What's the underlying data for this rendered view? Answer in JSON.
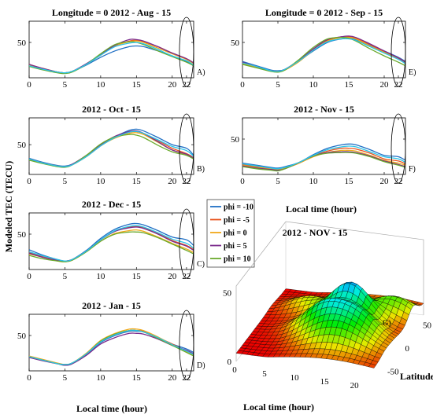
{
  "y_axis_label": "Modeled TEC (TECU)",
  "x_axis_label_left": "Local time (hour)",
  "x_axis_label_right": "Local time (hour)",
  "legend": [
    {
      "label": "phi = -10",
      "color": "#1f6fc4"
    },
    {
      "label": "phi = -5",
      "color": "#e8541e"
    },
    {
      "label": "phi = 0",
      "color": "#f0a818"
    },
    {
      "label": "phi = 5",
      "color": "#7a2a8c"
    },
    {
      "label": "phi = 10",
      "color": "#6aaa2c"
    }
  ],
  "colors": {
    "phi_m10": "#1f6fc4",
    "phi_m5": "#e8541e",
    "phi_0": "#f0a818",
    "phi_5": "#7a2a8c",
    "phi_10": "#6aaa2c",
    "cyan": "#29c3e8"
  },
  "chart_data": [
    {
      "id": "A",
      "type": "line",
      "panel_label": "A)",
      "title": "Longitude = 0  2012 - Aug - 15",
      "xlim": [
        0,
        23
      ],
      "ylim": [
        0,
        80
      ],
      "xticks": [
        0,
        5,
        10,
        15,
        20,
        22
      ],
      "yticks": [
        50
      ],
      "x": [
        0,
        2,
        4,
        5,
        6,
        8,
        10,
        12,
        14,
        15,
        16,
        18,
        20,
        22,
        23
      ],
      "series": [
        {
          "color": "#1f6fc4",
          "values": [
            17,
            12,
            8,
            7,
            9,
            18,
            29,
            38,
            44,
            45,
            44,
            38,
            31,
            23,
            17
          ]
        },
        {
          "color": "#e8541e",
          "values": [
            19,
            13,
            8,
            7,
            9,
            19,
            32,
            45,
            52,
            53,
            51,
            44,
            35,
            27,
            21
          ]
        },
        {
          "color": "#f0a818",
          "values": [
            18,
            13,
            8,
            7,
            9,
            19,
            32,
            45,
            51,
            52,
            50,
            42,
            34,
            26,
            20
          ]
        },
        {
          "color": "#7a2a8c",
          "values": [
            19,
            13,
            8,
            7,
            9,
            20,
            33,
            46,
            54,
            54,
            52,
            44,
            35,
            27,
            21
          ]
        },
        {
          "color": "#6aaa2c",
          "values": [
            16,
            11,
            7,
            6,
            8,
            19,
            34,
            47,
            51,
            50,
            47,
            38,
            30,
            22,
            17
          ]
        },
        {
          "color": "#29c3e8",
          "values": [
            17,
            12,
            8,
            7,
            9,
            19,
            32,
            44,
            49,
            50,
            48,
            40,
            31,
            24,
            18
          ]
        }
      ]
    },
    {
      "id": "E",
      "type": "line",
      "panel_label": "E)",
      "title": "Longitude = 0  2012 - Sep - 15",
      "xlim": [
        0,
        23
      ],
      "ylim": [
        0,
        80
      ],
      "xticks": [
        0,
        5,
        10,
        15,
        20,
        22
      ],
      "yticks": [
        50
      ],
      "x": [
        0,
        2,
        4,
        5,
        6,
        8,
        10,
        12,
        14,
        15,
        16,
        18,
        20,
        22,
        23
      ],
      "series": [
        {
          "color": "#1f6fc4",
          "values": [
            23,
            17,
            11,
            10,
            12,
            24,
            38,
            50,
            55,
            56,
            54,
            46,
            38,
            29,
            23
          ]
        },
        {
          "color": "#e8541e",
          "values": [
            21,
            15,
            10,
            9,
            12,
            24,
            40,
            53,
            58,
            58,
            56,
            47,
            37,
            28,
            22
          ]
        },
        {
          "color": "#f0a818",
          "values": [
            20,
            15,
            10,
            9,
            11,
            23,
            39,
            52,
            57,
            57,
            55,
            45,
            36,
            27,
            21
          ]
        },
        {
          "color": "#7a2a8c",
          "values": [
            22,
            16,
            10,
            9,
            12,
            25,
            41,
            54,
            58,
            59,
            57,
            48,
            38,
            28,
            22
          ]
        },
        {
          "color": "#6aaa2c",
          "values": [
            19,
            14,
            9,
            8,
            11,
            26,
            43,
            55,
            57,
            56,
            52,
            41,
            31,
            22,
            17
          ]
        },
        {
          "color": "#29c3e8",
          "values": [
            21,
            16,
            10,
            9,
            12,
            24,
            39,
            51,
            55,
            55,
            53,
            44,
            35,
            26,
            20
          ]
        }
      ]
    },
    {
      "id": "B",
      "type": "line",
      "panel_label": "B)",
      "title": "2012 - Oct - 15",
      "xlim": [
        0,
        23
      ],
      "ylim": [
        0,
        95
      ],
      "xticks": [
        0,
        5,
        10,
        15,
        20,
        22
      ],
      "yticks": [
        50
      ],
      "x": [
        0,
        2,
        4,
        5,
        6,
        8,
        10,
        12,
        14,
        15,
        16,
        18,
        20,
        22,
        23
      ],
      "series": [
        {
          "color": "#1f6fc4",
          "values": [
            27,
            20,
            15,
            14,
            17,
            30,
            48,
            63,
            74,
            76,
            73,
            62,
            50,
            44,
            32
          ]
        },
        {
          "color": "#e8541e",
          "values": [
            26,
            19,
            14,
            13,
            16,
            30,
            48,
            62,
            71,
            72,
            69,
            57,
            44,
            35,
            28
          ]
        },
        {
          "color": "#f0a818",
          "values": [
            25,
            19,
            14,
            13,
            16,
            30,
            48,
            61,
            69,
            70,
            67,
            54,
            41,
            33,
            26
          ]
        },
        {
          "color": "#7a2a8c",
          "values": [
            26,
            19,
            14,
            13,
            17,
            32,
            50,
            64,
            72,
            73,
            69,
            55,
            41,
            34,
            27
          ]
        },
        {
          "color": "#6aaa2c",
          "values": [
            24,
            18,
            13,
            12,
            16,
            32,
            51,
            63,
            67,
            66,
            62,
            49,
            38,
            32,
            26
          ]
        },
        {
          "color": "#29c3e8",
          "values": [
            26,
            19,
            14,
            13,
            16,
            30,
            48,
            62,
            71,
            72,
            69,
            58,
            47,
            40,
            30
          ]
        }
      ]
    },
    {
      "id": "F",
      "type": "line",
      "panel_label": "F)",
      "title": "2012 - Nov - 15",
      "xlim": [
        0,
        23
      ],
      "ylim": [
        0,
        80
      ],
      "xticks": [
        0,
        5,
        10,
        15,
        20,
        22
      ],
      "yticks": [
        50
      ],
      "x": [
        0,
        2,
        4,
        5,
        6,
        8,
        10,
        12,
        14,
        15,
        16,
        18,
        20,
        22,
        23
      ],
      "series": [
        {
          "color": "#1f6fc4",
          "values": [
            16,
            13,
            10,
            9,
            11,
            17,
            28,
            37,
            42,
            43,
            42,
            35,
            27,
            25,
            20
          ]
        },
        {
          "color": "#e8541e",
          "values": [
            14,
            11,
            8,
            7,
            9,
            16,
            26,
            33,
            37,
            37,
            36,
            30,
            22,
            19,
            15
          ]
        },
        {
          "color": "#f0a818",
          "values": [
            13,
            10,
            8,
            7,
            9,
            16,
            25,
            31,
            34,
            34,
            33,
            27,
            20,
            16,
            13
          ]
        },
        {
          "color": "#7a2a8c",
          "values": [
            12,
            9,
            7,
            6,
            8,
            17,
            26,
            31,
            32,
            32,
            31,
            26,
            19,
            14,
            11
          ]
        },
        {
          "color": "#6aaa2c",
          "values": [
            11,
            8,
            6,
            5,
            8,
            17,
            26,
            30,
            31,
            31,
            30,
            25,
            18,
            13,
            10
          ]
        },
        {
          "color": "#29c3e8",
          "values": [
            15,
            12,
            9,
            8,
            10,
            17,
            27,
            35,
            39,
            40,
            39,
            32,
            25,
            22,
            17
          ]
        }
      ]
    },
    {
      "id": "C",
      "type": "line",
      "panel_label": "C)",
      "title": "2012 - Dec - 15",
      "xlim": [
        0,
        23
      ],
      "ylim": [
        0,
        80
      ],
      "xticks": [
        0,
        5,
        10,
        15,
        20,
        22
      ],
      "yticks": [
        50
      ],
      "x": [
        0,
        2,
        4,
        5,
        6,
        8,
        10,
        12,
        14,
        15,
        16,
        18,
        20,
        22,
        23
      ],
      "series": [
        {
          "color": "#1f6fc4",
          "values": [
            28,
            20,
            14,
            12,
            14,
            27,
            44,
            57,
            64,
            65,
            63,
            55,
            46,
            42,
            34
          ]
        },
        {
          "color": "#e8541e",
          "values": [
            24,
            18,
            13,
            12,
            14,
            26,
            42,
            54,
            60,
            61,
            59,
            51,
            41,
            34,
            28
          ]
        },
        {
          "color": "#f0a818",
          "values": [
            22,
            17,
            12,
            11,
            13,
            25,
            40,
            51,
            55,
            56,
            54,
            46,
            37,
            29,
            24
          ]
        },
        {
          "color": "#7a2a8c",
          "values": [
            23,
            17,
            13,
            12,
            14,
            26,
            42,
            54,
            59,
            60,
            58,
            50,
            40,
            33,
            27
          ]
        },
        {
          "color": "#6aaa2c",
          "values": [
            20,
            15,
            12,
            11,
            13,
            25,
            40,
            50,
            53,
            53,
            52,
            45,
            36,
            27,
            22
          ]
        },
        {
          "color": "#29c3e8",
          "values": [
            25,
            19,
            14,
            12,
            14,
            26,
            42,
            55,
            61,
            62,
            60,
            52,
            43,
            37,
            30
          ]
        }
      ]
    },
    {
      "id": "D",
      "type": "line",
      "panel_label": "D)",
      "title": "2012 - Jan - 15",
      "xlim": [
        0,
        23
      ],
      "ylim": [
        0,
        80
      ],
      "xticks": [
        0,
        5,
        10,
        15,
        20,
        22
      ],
      "yticks": [
        50
      ],
      "x": [
        0,
        2,
        4,
        5,
        6,
        8,
        10,
        12,
        14,
        15,
        16,
        18,
        20,
        22,
        23
      ],
      "series": [
        {
          "color": "#1f6fc4",
          "values": [
            20,
            15,
            10,
            8,
            10,
            23,
            40,
            50,
            56,
            56,
            55,
            47,
            38,
            31,
            26
          ]
        },
        {
          "color": "#e8541e",
          "values": [
            20,
            15,
            10,
            9,
            11,
            24,
            41,
            51,
            57,
            57,
            56,
            47,
            38,
            28,
            23
          ]
        },
        {
          "color": "#f0a818",
          "values": [
            21,
            16,
            11,
            9,
            11,
            25,
            43,
            53,
            59,
            59,
            57,
            48,
            37,
            27,
            22
          ]
        },
        {
          "color": "#7a2a8c",
          "values": [
            19,
            14,
            10,
            8,
            10,
            22,
            38,
            47,
            53,
            53,
            52,
            45,
            36,
            29,
            24
          ]
        },
        {
          "color": "#6aaa2c",
          "values": [
            20,
            15,
            10,
            9,
            11,
            24,
            42,
            52,
            57,
            57,
            55,
            46,
            36,
            26,
            21
          ]
        },
        {
          "color": "#29c3e8",
          "values": [
            20,
            15,
            10,
            9,
            11,
            24,
            41,
            51,
            57,
            57,
            55,
            47,
            37,
            28,
            23
          ]
        }
      ]
    }
  ],
  "surface": {
    "type": "surface3d",
    "panel_label": "G)",
    "title": "2012 - NOV - 15",
    "xlabel": "Local time (hour)",
    "ylabel": "Latitude",
    "xticks": [
      0,
      5,
      10,
      15,
      20
    ],
    "yticks": [
      -50,
      0,
      50
    ],
    "zticks": [
      0,
      50
    ],
    "xlim": [
      0,
      23
    ],
    "ylim": [
      -70,
      70
    ],
    "zlim": [
      0,
      55
    ]
  }
}
